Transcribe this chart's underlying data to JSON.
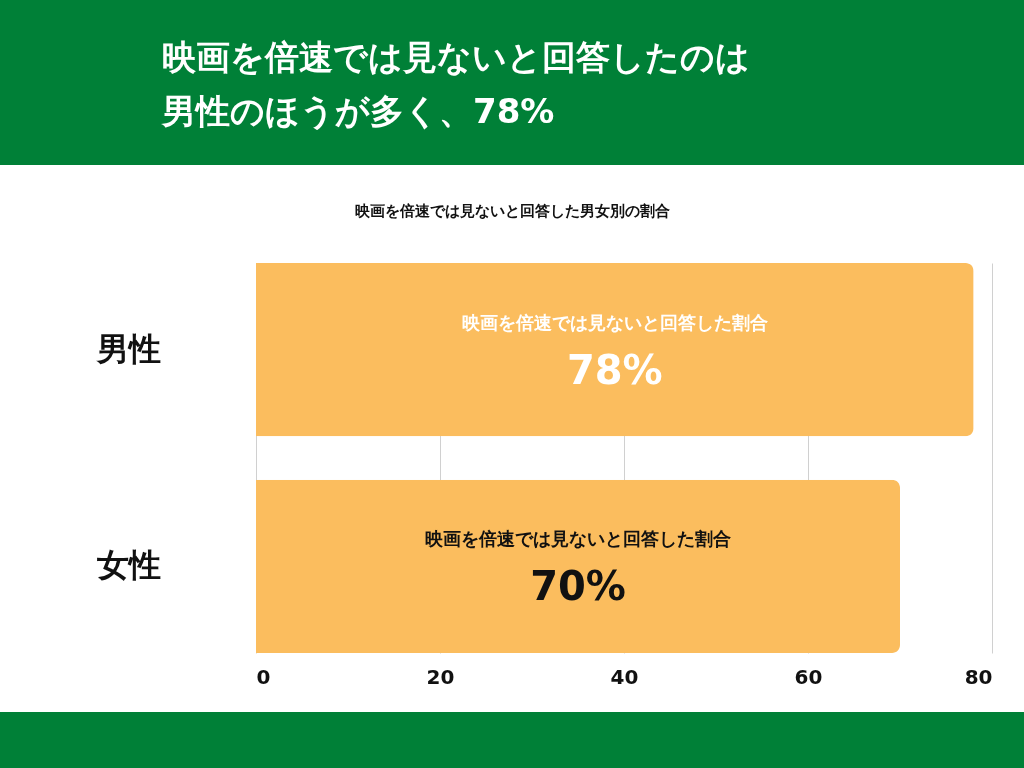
{
  "chart_data": {
    "type": "bar",
    "orientation": "horizontal",
    "title": "映画を倍速では見ないと回答したのは男性のほうが多く、78%",
    "subtitle": "映画を倍速では見ないと回答した男女別の割合",
    "categories": [
      "男性",
      "女性"
    ],
    "values": [
      78,
      70
    ],
    "value_labels": [
      "78%",
      "70%"
    ],
    "color": "#fbbd5e",
    "xlim": [
      0,
      80
    ],
    "xticks": [
      0,
      20,
      40,
      60,
      80
    ],
    "grid": "x",
    "annotations": [
      "映画を倍速では見ないと回答した割合",
      "映画を倍速では見ないと回答した割合"
    ]
  }
}
